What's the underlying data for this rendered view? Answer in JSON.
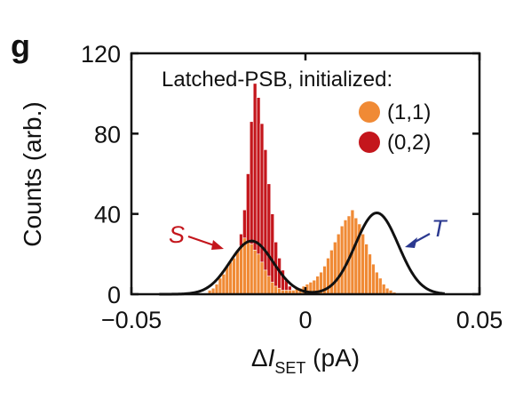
{
  "chart_data": {
    "type": "bar",
    "panel_label": "g",
    "title": "",
    "xlabel": {
      "prefix": "Δ",
      "var": "I",
      "sub": "SET",
      "suffix": " (pA)"
    },
    "ylabel": "Counts (arb.)",
    "xlim": [
      -0.05,
      0.05
    ],
    "ylim": [
      0,
      120
    ],
    "xticks": [
      -0.05,
      0,
      0.05
    ],
    "xtick_labels": [
      "−0.05",
      "0",
      "0.05"
    ],
    "yticks": [
      0,
      40,
      80,
      120
    ],
    "ytick_labels": [
      "0",
      "40",
      "80",
      "120"
    ],
    "grid": false,
    "legend": {
      "title": "Latched-PSB, initialized:",
      "placement": "top-right",
      "entries": [
        {
          "label": "(1,1)",
          "color": "#F08A35"
        },
        {
          "label": "(0,2)",
          "color": "#C4161C"
        }
      ]
    },
    "bin_width": 0.001,
    "series": [
      {
        "name": "(0,2)",
        "color": "#C4161C",
        "x_start": -0.025,
        "values": [
          2,
          4,
          6,
          10,
          14,
          22,
          30,
          42,
          60,
          86,
          105,
          98,
          85,
          72,
          55,
          40,
          26,
          18,
          12,
          7,
          4,
          2
        ]
      },
      {
        "name": "(1,1)",
        "color": "#F08A35",
        "x_start": -0.028,
        "values": [
          2,
          3,
          5,
          8,
          10,
          14,
          16,
          18,
          22,
          24,
          28,
          26,
          25,
          22,
          20,
          16,
          12,
          9,
          6,
          4,
          3,
          2,
          2,
          2,
          2,
          3,
          3,
          4,
          5,
          6,
          7,
          9,
          11,
          14,
          18,
          22,
          26,
          30,
          34,
          37,
          39,
          42,
          38,
          35,
          30,
          25,
          20,
          15,
          11,
          8,
          5,
          3,
          2,
          1
        ]
      }
    ],
    "fit_curves": {
      "color": "#111111",
      "gaussians": [
        {
          "amplitude": 26.5,
          "center": -0.0155,
          "sigma": 0.0062
        },
        {
          "amplitude": 40.5,
          "center": 0.0205,
          "sigma": 0.0062
        }
      ]
    },
    "annotations": [
      {
        "text": "S",
        "color": "#C4161C"
      },
      {
        "text": "T",
        "color": "#2B3990"
      }
    ]
  }
}
